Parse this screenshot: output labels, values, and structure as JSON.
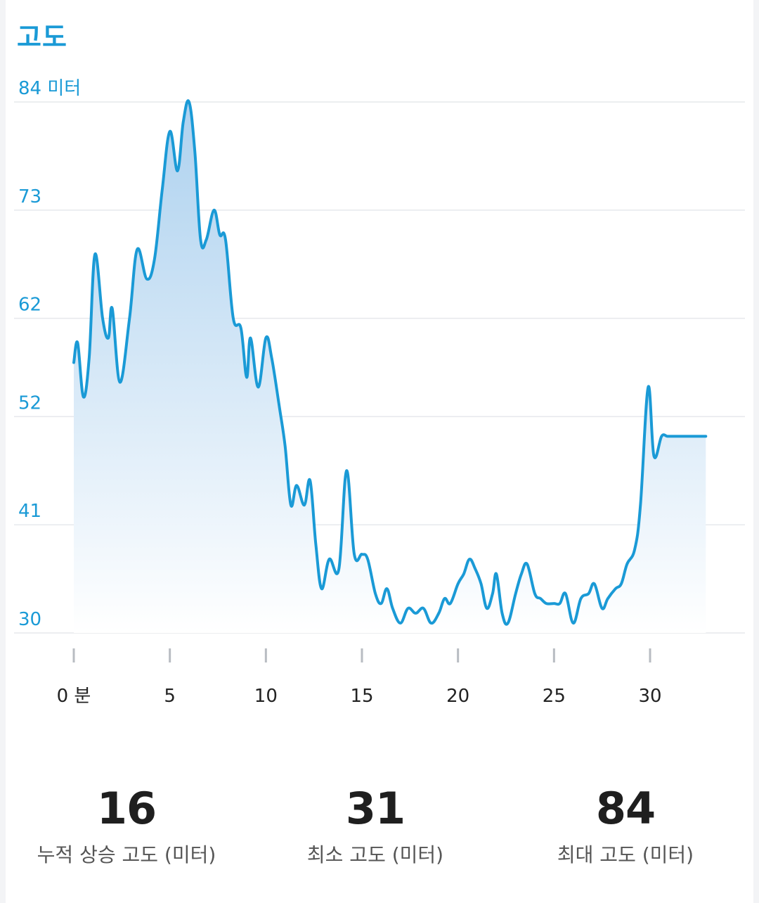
{
  "header": {
    "title": "고도"
  },
  "chart_data": {
    "type": "area",
    "title": "",
    "xlabel": "",
    "ylabel": "",
    "unit_label": "84 미터",
    "y_ticks": [
      30,
      41,
      52,
      62,
      73,
      84
    ],
    "y_tick_labels": [
      "30",
      "41",
      "52",
      "62",
      "73",
      "84 미터"
    ],
    "x_ticks": [
      0,
      5,
      10,
      15,
      20,
      25,
      30
    ],
    "x_tick_labels": [
      "0 분",
      "5",
      "10",
      "15",
      "20",
      "25",
      "30"
    ],
    "xlim": [
      0,
      33
    ],
    "ylim": [
      30,
      84
    ],
    "grid": true,
    "line_color": "#1a9ad6",
    "fill_color_top": "#a9cfee",
    "fill_color_bottom": "#ffffff",
    "series": [
      {
        "x": [
          0,
          0.2,
          0.5,
          0.8,
          1.1,
          1.5,
          1.8,
          2.0,
          2.4,
          2.9,
          3.3,
          3.8,
          4.2,
          4.6,
          5.0,
          5.4,
          5.7,
          6.0,
          6.3,
          6.6,
          6.9,
          7.3,
          7.6,
          7.9,
          8.3,
          8.7,
          9.0,
          9.2,
          9.6,
          10.0,
          10.3,
          10.7,
          11.0,
          11.3,
          11.6,
          12.0,
          12.3,
          12.6,
          12.9,
          13.3,
          13.8,
          14.2,
          14.6,
          15.0,
          15.3,
          15.7,
          16.0,
          16.3,
          16.6,
          17.0,
          17.4,
          17.8,
          18.2,
          18.6,
          19.0,
          19.3,
          19.6,
          20.0,
          20.3,
          20.6,
          20.9,
          21.2,
          21.5,
          21.8,
          22.0,
          22.3,
          22.6,
          23.0,
          23.3,
          23.6,
          24.0,
          24.3,
          24.6,
          25.0,
          25.3,
          25.6,
          26.0,
          26.4,
          26.8,
          27.1,
          27.5,
          27.8,
          28.2,
          28.5,
          28.8,
          29.2,
          29.5,
          29.9,
          30.2,
          30.6,
          30.9,
          31.2,
          31.6,
          32.0,
          32.3,
          32.6,
          32.9
        ],
        "y": [
          57.5,
          59.5,
          54,
          58,
          68.5,
          62,
          60,
          63,
          55.5,
          62,
          69,
          66,
          68,
          75,
          81,
          77,
          82,
          84,
          79,
          70,
          70,
          73,
          70.5,
          70,
          62,
          61,
          56,
          60,
          55,
          60,
          58,
          53,
          49,
          43,
          45,
          43,
          45.5,
          39,
          34.5,
          37.5,
          36.5,
          46.5,
          38,
          38,
          37.5,
          34,
          33,
          34.5,
          32.5,
          31,
          32.5,
          32,
          32.5,
          31,
          32,
          33.5,
          33,
          35,
          36,
          37.5,
          36.5,
          35,
          32.5,
          34,
          36,
          32,
          31,
          34,
          36,
          37,
          34,
          33.5,
          33,
          33,
          33,
          34,
          31,
          33.5,
          34,
          35,
          32.5,
          33.5,
          34.5,
          35,
          37,
          38.5,
          43,
          55,
          48,
          50,
          50,
          50,
          50,
          50,
          50,
          50,
          50
        ],
        "y_corrected": [
          57.5,
          59.5,
          54,
          58,
          68.5,
          62,
          60,
          63,
          55.5,
          62,
          69,
          66,
          68,
          75,
          81,
          77,
          82,
          84,
          79,
          70,
          70,
          73,
          70.5,
          70,
          62,
          61,
          56,
          60,
          55,
          60,
          58,
          53,
          49,
          43,
          45,
          43,
          45.5,
          39,
          34.5,
          37.5,
          36.5,
          46.5,
          38,
          38,
          37.5,
          34,
          33,
          34.5,
          32.5,
          31,
          32.5,
          32,
          32.5,
          31,
          32,
          33.5,
          33,
          35,
          36,
          37.5,
          36.5,
          35,
          32.5,
          34,
          36,
          32,
          31,
          34,
          36,
          37,
          34,
          33.5,
          33,
          33,
          33,
          34,
          31,
          33.5,
          34,
          35,
          32.5,
          33.5,
          34.5,
          35,
          37,
          38.5,
          43,
          55,
          48,
          50,
          50,
          50,
          50,
          50,
          50,
          50,
          50
        ]
      }
    ]
  },
  "stats": [
    {
      "value": "16",
      "label": "누적 상승 고도 (미터)"
    },
    {
      "value": "31",
      "label": "최소 고도 (미터)"
    },
    {
      "value": "84",
      "label": "최대 고도 (미터)"
    }
  ]
}
